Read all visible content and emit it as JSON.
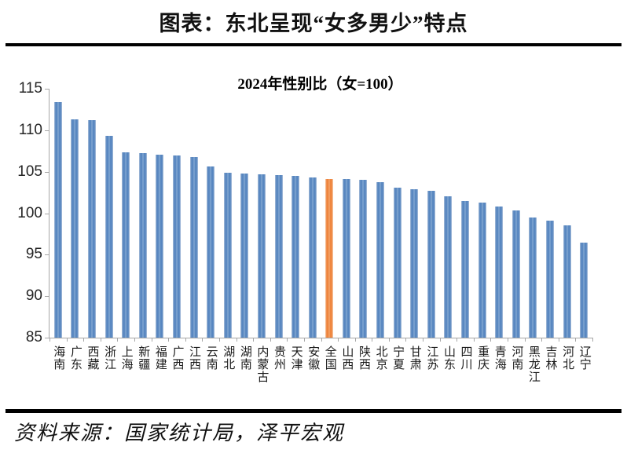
{
  "page": {
    "title": "图表：东北呈现“女多男少”特点",
    "source": "资料来源：国家统计局，泽平宏观"
  },
  "chart_data": {
    "type": "bar",
    "title": "2024年性别比（女=100）",
    "categories": [
      "海南",
      "广东",
      "西藏",
      "浙江",
      "上海",
      "新疆",
      "福建",
      "广西",
      "江西",
      "云南",
      "湖北",
      "湖南",
      "内蒙古",
      "贵州",
      "天津",
      "安徽",
      "全国",
      "山西",
      "陕西",
      "北京",
      "宁夏",
      "甘肃",
      "江苏",
      "山东",
      "四川",
      "重庆",
      "青海",
      "河南",
      "黑龙江",
      "吉林",
      "河北",
      "辽宁"
    ],
    "values": [
      113.4,
      111.3,
      111.2,
      109.3,
      107.3,
      107.2,
      107.1,
      107.0,
      106.8,
      105.6,
      104.9,
      104.8,
      104.7,
      104.6,
      104.5,
      104.3,
      104.1,
      104.1,
      104.0,
      103.7,
      103.1,
      102.9,
      102.7,
      102.0,
      101.5,
      101.3,
      100.8,
      100.3,
      99.5,
      99.1,
      98.5,
      96.5
    ],
    "highlight_category": "全国",
    "bar_color": "#4f81bd",
    "highlight_color": "#ed7d31",
    "axis_color": "#a6a6a6",
    "ylim": [
      85,
      115
    ],
    "y_ticks": [
      115,
      110,
      105,
      100,
      95,
      90,
      85
    ],
    "grid": false,
    "legend": "none"
  }
}
